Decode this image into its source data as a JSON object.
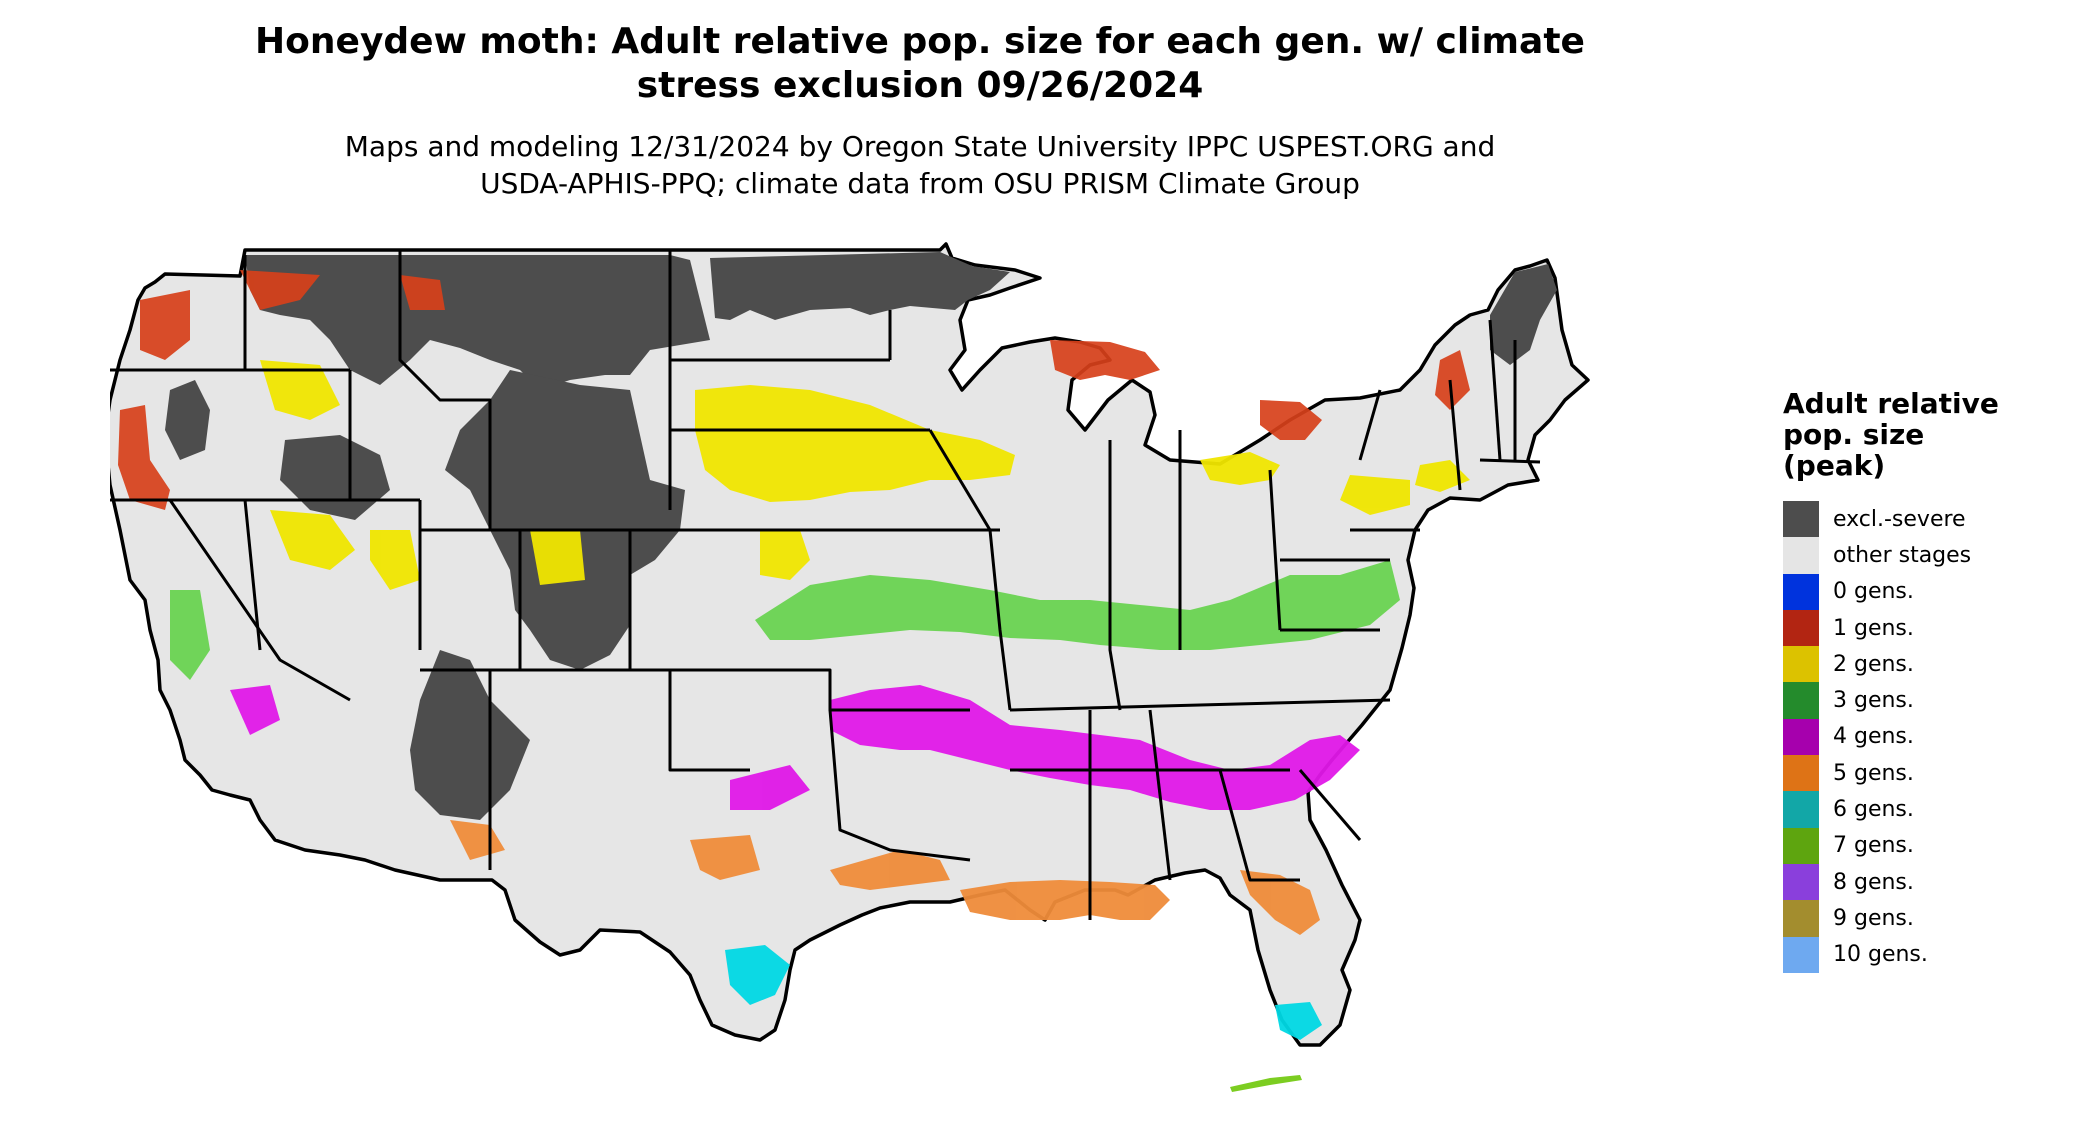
{
  "title": {
    "line1": "Honeydew moth: Adult relative pop. size for each gen. w/ climate",
    "line2": "stress exclusion 09/26/2024"
  },
  "subtitle": {
    "line1": "Maps and modeling 12/31/2024 by Oregon State University IPPC USPEST.ORG and",
    "line2": "USDA-APHIS-PPQ; climate data from OSU PRISM Climate Group"
  },
  "legend": {
    "title_lines": [
      "Adult relative",
      "pop. size",
      "(peak)"
    ],
    "items": [
      {
        "label": "excl.-severe",
        "color": "#4d4d4d"
      },
      {
        "label": "other stages",
        "color": "#e5e5e5"
      },
      {
        "label": "0 gens.",
        "color": "#0033dd"
      },
      {
        "label": "1 gens.",
        "color": "#b22512"
      },
      {
        "label": "2 gens.",
        "color": "#dcc200"
      },
      {
        "label": "3 gens.",
        "color": "#248b2c"
      },
      {
        "label": "4 gens.",
        "color": "#a600ad"
      },
      {
        "label": "5 gens.",
        "color": "#de7316"
      },
      {
        "label": "6 gens.",
        "color": "#12a7a7"
      },
      {
        "label": "7 gens.",
        "color": "#5ea50f"
      },
      {
        "label": "8 gens.",
        "color": "#8a3fdc"
      },
      {
        "label": "9 gens.",
        "color": "#a38d2e"
      },
      {
        "label": "10 gens.",
        "color": "#6ea9f0"
      }
    ]
  },
  "map_colors": {
    "base": "#e6e6e6",
    "excluded": "#4d4d4d",
    "gen1": "#d7401a",
    "gen2": "#f0e600",
    "gen3": "#66d24d",
    "gen4": "#e018e8",
    "gen5": "#ef8c3a",
    "gen6": "#00d8e4",
    "gen7": "#7ccd21",
    "border": "#000000"
  }
}
